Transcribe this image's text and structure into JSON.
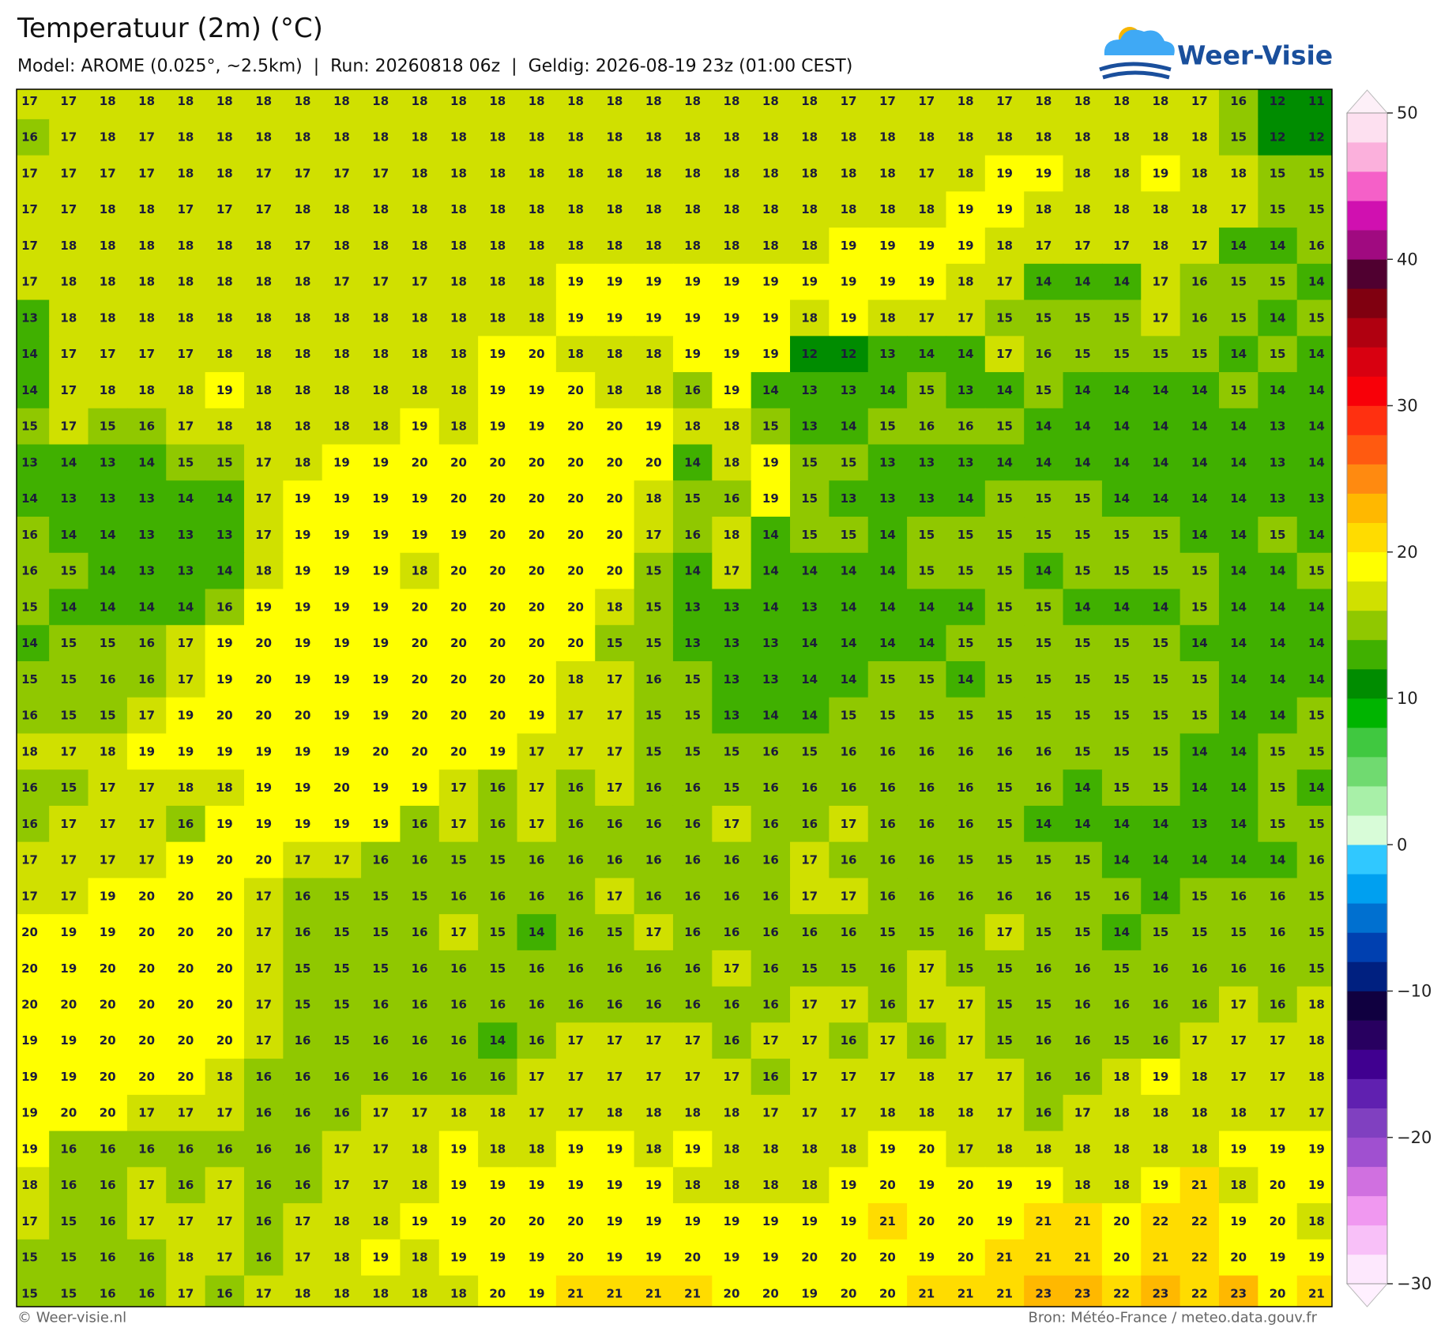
{
  "header": {
    "title": "Temperatuur (2m) (°C)",
    "subtitle": "Model: AROME (0.025°, ~2.5km)  |  Run: 20260818 06z  |  Geldig: 2026-08-19 23z (01:00 CEST)",
    "logo": "Weer-Visie"
  },
  "grid": {
    "rows": [
      [
        17,
        17,
        18,
        18,
        18,
        18,
        18,
        18,
        18,
        18,
        18,
        18,
        18,
        18,
        18,
        18,
        18,
        18,
        18,
        18,
        18,
        17,
        17,
        17,
        18,
        17,
        18,
        18,
        18,
        18,
        17,
        16,
        12,
        11
      ],
      [
        16,
        17,
        18,
        17,
        18,
        18,
        18,
        18,
        18,
        18,
        18,
        18,
        18,
        18,
        18,
        18,
        18,
        18,
        18,
        18,
        18,
        18,
        18,
        18,
        18,
        18,
        18,
        18,
        18,
        18,
        18,
        15,
        12,
        12
      ],
      [
        17,
        17,
        17,
        17,
        18,
        18,
        17,
        17,
        17,
        17,
        18,
        18,
        18,
        18,
        18,
        18,
        18,
        18,
        18,
        18,
        18,
        18,
        18,
        17,
        18,
        19,
        19,
        18,
        18,
        19,
        18,
        18,
        15,
        15
      ],
      [
        17,
        17,
        18,
        18,
        17,
        17,
        17,
        18,
        18,
        18,
        18,
        18,
        18,
        18,
        18,
        18,
        18,
        18,
        18,
        18,
        18,
        18,
        18,
        18,
        19,
        19,
        18,
        18,
        18,
        18,
        18,
        17,
        15,
        15
      ],
      [
        17,
        18,
        18,
        18,
        18,
        18,
        18,
        17,
        18,
        18,
        18,
        18,
        18,
        18,
        18,
        18,
        18,
        18,
        18,
        18,
        18,
        19,
        19,
        19,
        19,
        18,
        17,
        17,
        17,
        18,
        17,
        14,
        14,
        16
      ],
      [
        17,
        18,
        18,
        18,
        18,
        18,
        18,
        18,
        17,
        17,
        17,
        18,
        18,
        18,
        19,
        19,
        19,
        19,
        19,
        19,
        19,
        19,
        19,
        19,
        18,
        17,
        14,
        14,
        14,
        17,
        16,
        15,
        15,
        14
      ],
      [
        13,
        18,
        18,
        18,
        18,
        18,
        18,
        18,
        18,
        18,
        18,
        18,
        18,
        18,
        19,
        19,
        19,
        19,
        19,
        19,
        18,
        19,
        18,
        17,
        17,
        15,
        15,
        15,
        15,
        17,
        16,
        15,
        14,
        15
      ],
      [
        14,
        17,
        17,
        17,
        17,
        18,
        18,
        18,
        18,
        18,
        18,
        18,
        19,
        20,
        18,
        18,
        18,
        19,
        19,
        19,
        12,
        12,
        13,
        14,
        14,
        17,
        16,
        15,
        15,
        15,
        15,
        14,
        15,
        14
      ],
      [
        14,
        17,
        18,
        18,
        18,
        19,
        18,
        18,
        18,
        18,
        18,
        18,
        19,
        19,
        20,
        18,
        18,
        16,
        19,
        14,
        13,
        13,
        14,
        15,
        13,
        14,
        15,
        14,
        14,
        14,
        14,
        15,
        14,
        14
      ],
      [
        15,
        17,
        15,
        16,
        17,
        18,
        18,
        18,
        18,
        18,
        19,
        18,
        19,
        19,
        20,
        20,
        19,
        18,
        18,
        15,
        13,
        14,
        15,
        16,
        16,
        15,
        14,
        14,
        14,
        14,
        14,
        14,
        13,
        14
      ],
      [
        13,
        14,
        13,
        14,
        15,
        15,
        17,
        18,
        19,
        19,
        20,
        20,
        20,
        20,
        20,
        20,
        20,
        14,
        18,
        19,
        15,
        15,
        13,
        13,
        13,
        14,
        14,
        14,
        14,
        14,
        14,
        14,
        13,
        14
      ],
      [
        14,
        13,
        13,
        13,
        14,
        14,
        17,
        19,
        19,
        19,
        19,
        20,
        20,
        20,
        20,
        20,
        18,
        15,
        16,
        19,
        15,
        13,
        13,
        13,
        14,
        15,
        15,
        15,
        14,
        14,
        14,
        14,
        13,
        13
      ],
      [
        16,
        14,
        14,
        13,
        13,
        13,
        17,
        19,
        19,
        19,
        19,
        19,
        20,
        20,
        20,
        20,
        17,
        16,
        18,
        14,
        15,
        15,
        14,
        15,
        15,
        15,
        15,
        15,
        15,
        15,
        14,
        14,
        15,
        14
      ],
      [
        16,
        15,
        14,
        13,
        13,
        14,
        18,
        19,
        19,
        19,
        18,
        20,
        20,
        20,
        20,
        20,
        15,
        14,
        17,
        14,
        14,
        14,
        14,
        15,
        15,
        15,
        14,
        15,
        15,
        15,
        15,
        14,
        14,
        15
      ],
      [
        15,
        14,
        14,
        14,
        14,
        16,
        19,
        19,
        19,
        19,
        20,
        20,
        20,
        20,
        20,
        18,
        15,
        13,
        13,
        14,
        13,
        14,
        14,
        14,
        14,
        15,
        15,
        14,
        14,
        14,
        15,
        14,
        14,
        14
      ],
      [
        14,
        15,
        15,
        16,
        17,
        19,
        20,
        19,
        19,
        19,
        20,
        20,
        20,
        20,
        20,
        15,
        15,
        13,
        13,
        13,
        14,
        14,
        14,
        14,
        15,
        15,
        15,
        15,
        15,
        15,
        14,
        14,
        14,
        14
      ],
      [
        15,
        15,
        16,
        16,
        17,
        19,
        20,
        19,
        19,
        19,
        20,
        20,
        20,
        20,
        18,
        17,
        16,
        15,
        13,
        13,
        14,
        14,
        15,
        15,
        14,
        15,
        15,
        15,
        15,
        15,
        15,
        14,
        14,
        14
      ],
      [
        16,
        15,
        15,
        17,
        19,
        20,
        20,
        20,
        19,
        19,
        20,
        20,
        20,
        19,
        17,
        17,
        15,
        15,
        13,
        14,
        14,
        15,
        15,
        15,
        15,
        15,
        15,
        15,
        15,
        15,
        15,
        14,
        14,
        15
      ],
      [
        18,
        17,
        18,
        19,
        19,
        19,
        19,
        19,
        19,
        20,
        20,
        20,
        19,
        17,
        17,
        17,
        15,
        15,
        15,
        16,
        15,
        16,
        16,
        16,
        16,
        16,
        16,
        15,
        15,
        15,
        14,
        14,
        15,
        15
      ],
      [
        16,
        15,
        17,
        17,
        18,
        18,
        19,
        19,
        20,
        19,
        19,
        17,
        16,
        17,
        16,
        17,
        16,
        16,
        15,
        16,
        16,
        16,
        16,
        16,
        16,
        15,
        16,
        14,
        15,
        15,
        14,
        14,
        15,
        14
      ],
      [
        16,
        17,
        17,
        17,
        16,
        19,
        19,
        19,
        19,
        19,
        16,
        17,
        16,
        17,
        16,
        16,
        16,
        16,
        17,
        16,
        16,
        17,
        16,
        16,
        16,
        15,
        14,
        14,
        14,
        14,
        13,
        14,
        15,
        15
      ],
      [
        17,
        17,
        17,
        17,
        19,
        20,
        20,
        17,
        17,
        16,
        16,
        15,
        15,
        16,
        16,
        16,
        16,
        16,
        16,
        16,
        17,
        16,
        16,
        16,
        15,
        15,
        15,
        15,
        14,
        14,
        14,
        14,
        14,
        16
      ],
      [
        17,
        17,
        19,
        20,
        20,
        20,
        17,
        16,
        15,
        15,
        15,
        16,
        16,
        16,
        16,
        17,
        16,
        16,
        16,
        16,
        17,
        17,
        16,
        16,
        16,
        16,
        16,
        15,
        16,
        14,
        15,
        16,
        16,
        15
      ],
      [
        20,
        19,
        19,
        20,
        20,
        20,
        17,
        16,
        15,
        15,
        16,
        17,
        15,
        14,
        16,
        15,
        17,
        16,
        16,
        16,
        16,
        16,
        15,
        15,
        16,
        17,
        15,
        15,
        14,
        15,
        15,
        15,
        16,
        15
      ],
      [
        20,
        19,
        20,
        20,
        20,
        20,
        17,
        15,
        15,
        15,
        16,
        16,
        15,
        16,
        16,
        16,
        16,
        16,
        17,
        16,
        15,
        15,
        16,
        17,
        15,
        15,
        16,
        16,
        15,
        16,
        16,
        16,
        16,
        15
      ],
      [
        20,
        20,
        20,
        20,
        20,
        20,
        17,
        15,
        15,
        16,
        16,
        16,
        16,
        16,
        16,
        16,
        16,
        16,
        16,
        16,
        17,
        17,
        16,
        17,
        17,
        15,
        15,
        16,
        16,
        16,
        16,
        17,
        16,
        18
      ],
      [
        19,
        19,
        20,
        20,
        20,
        20,
        17,
        16,
        15,
        16,
        16,
        16,
        14,
        16,
        17,
        17,
        17,
        17,
        16,
        17,
        17,
        16,
        17,
        16,
        17,
        15,
        16,
        16,
        15,
        16,
        17,
        17,
        17,
        18
      ],
      [
        19,
        19,
        20,
        20,
        20,
        18,
        16,
        16,
        16,
        16,
        16,
        16,
        16,
        17,
        17,
        17,
        17,
        17,
        17,
        16,
        17,
        17,
        17,
        18,
        17,
        17,
        16,
        16,
        18,
        19,
        18,
        17,
        17,
        18
      ],
      [
        19,
        20,
        20,
        17,
        17,
        17,
        16,
        16,
        16,
        17,
        17,
        18,
        18,
        17,
        17,
        18,
        18,
        18,
        18,
        17,
        17,
        17,
        18,
        18,
        18,
        17,
        16,
        17,
        18,
        18,
        18,
        18,
        17,
        17
      ],
      [
        19,
        16,
        16,
        16,
        16,
        16,
        16,
        16,
        17,
        17,
        18,
        19,
        18,
        18,
        19,
        19,
        18,
        19,
        18,
        18,
        18,
        18,
        19,
        20,
        17,
        18,
        18,
        18,
        18,
        18,
        18,
        19,
        19,
        19
      ],
      [
        18,
        16,
        16,
        17,
        16,
        17,
        16,
        16,
        17,
        17,
        18,
        19,
        19,
        19,
        19,
        19,
        19,
        18,
        18,
        18,
        18,
        19,
        20,
        19,
        20,
        19,
        19,
        18,
        18,
        19,
        21,
        18,
        20,
        19
      ],
      [
        17,
        15,
        16,
        17,
        17,
        17,
        16,
        17,
        18,
        18,
        19,
        19,
        20,
        20,
        20,
        19,
        19,
        19,
        19,
        19,
        19,
        19,
        21,
        20,
        20,
        19,
        21,
        21,
        20,
        22,
        22,
        19,
        20,
        18
      ],
      [
        15,
        15,
        16,
        16,
        18,
        17,
        16,
        17,
        18,
        19,
        18,
        19,
        19,
        19,
        20,
        19,
        19,
        20,
        19,
        19,
        20,
        20,
        20,
        19,
        20,
        21,
        21,
        21,
        20,
        21,
        22,
        20,
        19,
        19
      ],
      [
        15,
        15,
        16,
        16,
        17,
        16,
        17,
        18,
        18,
        18,
        18,
        18,
        20,
        19,
        21,
        21,
        21,
        21,
        20,
        20,
        19,
        20,
        20,
        21,
        21,
        21,
        23,
        23,
        22,
        23,
        22,
        23,
        20,
        21
      ]
    ]
  },
  "colorbar": {
    "lim": [
      -30,
      50
    ],
    "ticks": [
      50,
      40,
      30,
      20,
      10,
      0,
      {
        "value": -10,
        "label": "−10"
      },
      {
        "value": -20,
        "label": "−20"
      },
      {
        "value": -30,
        "label": "−30"
      }
    ],
    "levels": [
      -30,
      -28,
      -26,
      -24,
      -22,
      -20,
      -18,
      -16,
      -14,
      -12,
      -10,
      -8,
      -6,
      -4,
      -2,
      0,
      2,
      4,
      6,
      8,
      10,
      12,
      14,
      16,
      18,
      20,
      22,
      24,
      26,
      28,
      30,
      32,
      34,
      36,
      38,
      40,
      42,
      44,
      46,
      48,
      50
    ],
    "colors": [
      "#fde8fd",
      "#f8c0f8",
      "#f098f0",
      "#d070e0",
      "#a050d0",
      "#8040c0",
      "#6020b0",
      "#400090",
      "#280060",
      "#100040",
      "#002080",
      "#0040b0",
      "#0070d0",
      "#00a0f0",
      "#30c8ff",
      "#d8fcd8",
      "#a8f0a8",
      "#70da70",
      "#40c840",
      "#00b400",
      "#008c00",
      "#40b000",
      "#90c800",
      "#d0e000",
      "#ffff00",
      "#ffdc00",
      "#ffb800",
      "#ff8a10",
      "#ff5a10",
      "#ff3010",
      "#f80008",
      "#d80010",
      "#b00010",
      "#800010",
      "#500030",
      "#a00a80",
      "#d010b0",
      "#f560c8",
      "#fbb0dc",
      "#fde0f0"
    ]
  },
  "footer": {
    "left": "© Weer-visie.nl",
    "right": "Bron: Météo-France / meteo.data.gouv.fr"
  }
}
